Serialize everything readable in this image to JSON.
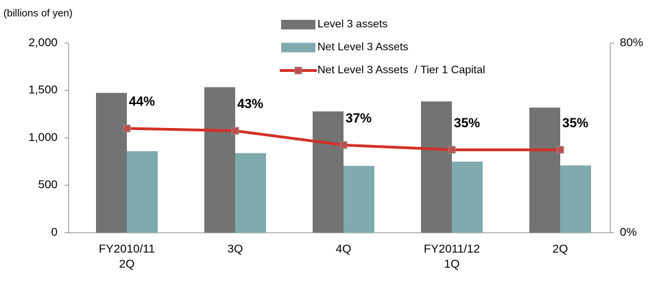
{
  "chart_data": {
    "type": "bar_line",
    "y_axis_label": "(billions of yen)",
    "categories": [
      "FY2010/11\n2Q",
      "3Q",
      "4Q",
      "FY2011/12\n1Q",
      "2Q"
    ],
    "series": [
      {
        "name": "Level 3 assets",
        "color": "#737373",
        "values": [
          1475,
          1535,
          1280,
          1385,
          1320
        ]
      },
      {
        "name": "Net Level 3 Assets",
        "color": "#7fabae",
        "values": [
          860,
          840,
          705,
          750,
          710
        ]
      },
      {
        "name": "Net Level 3 Assets  / Tier 1 Capital",
        "color": "#d42e25",
        "marker_color": "#c0504d",
        "axis": "y2",
        "type": "line",
        "values": [
          44,
          43,
          37,
          35,
          35
        ],
        "value_labels": [
          "44%",
          "43%",
          "37%",
          "35%",
          "35%"
        ]
      }
    ],
    "ylim": [
      0,
      2000
    ],
    "yticks": [
      0,
      500,
      {
        "value": 1000,
        "label": "1,000"
      },
      {
        "value": 1500,
        "label": "1,500"
      },
      {
        "value": 2000,
        "label": "2,000"
      }
    ],
    "y2lim": [
      0,
      80
    ],
    "y2ticks": [
      {
        "value": 0,
        "label": "0%"
      },
      {
        "value": 80,
        "label": "80%"
      }
    ],
    "grid": false
  }
}
